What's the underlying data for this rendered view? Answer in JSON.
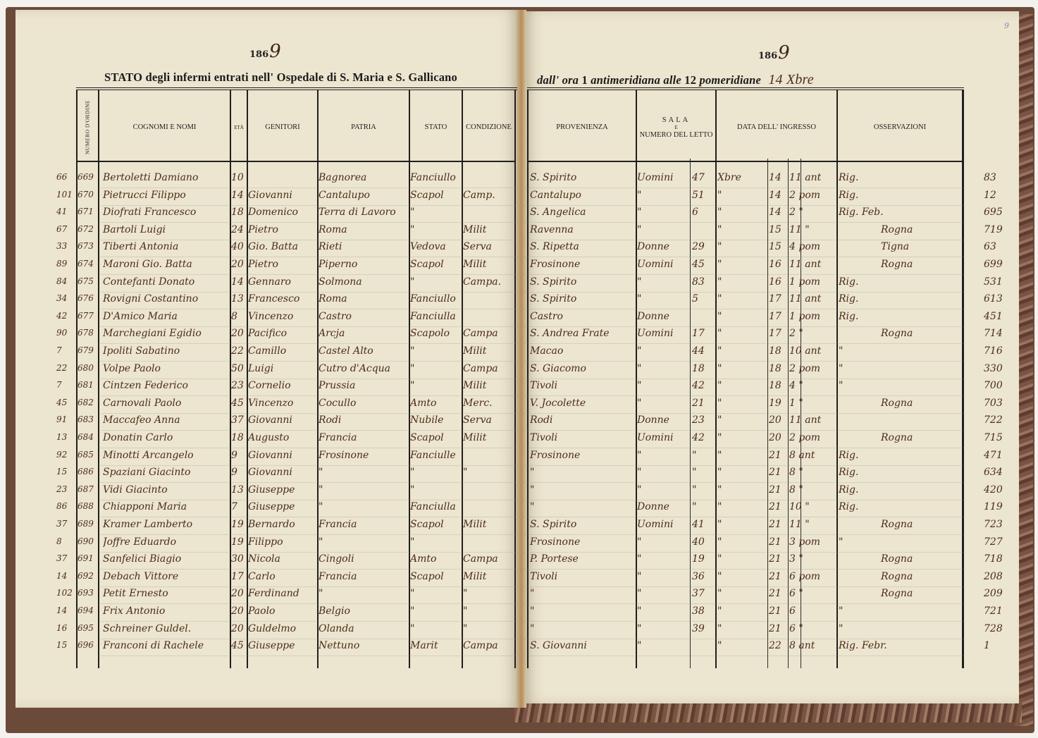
{
  "left_page": {
    "year_printed": "186",
    "year_written": "9",
    "title": "STATO degli infermi entrati nell' Ospedale di S. Maria e S. Gallicano",
    "headers": {
      "numero": "NUMERO D'ORDINE",
      "nomi": "COGNOMI E NOMI",
      "eta": "ETÀ",
      "genitori": "GENITORI",
      "patria": "PATRIA",
      "stato": "STATO",
      "condizione": "CONDIZIONE"
    }
  },
  "right_page": {
    "year_printed": "186",
    "year_written": "9",
    "title_italic_1": "dall' ora",
    "title_hour_1": "1",
    "title_italic_2": "antimeridiana alle",
    "title_hour_2": "12",
    "title_italic_3": "pomeridiane",
    "date_written": "14 Xbre",
    "page_number": "9",
    "headers": {
      "provenienza": "PROVENIENZA",
      "sala_1": "SALA",
      "sala_2": "E",
      "sala_3": "NUMERO DEL LETTO",
      "data": "DATA DELL' INGRESSO",
      "osservazioni": "OSSERVAZIONI"
    }
  },
  "rows": [
    {
      "margin": "66",
      "num": "669",
      "name": "Bertoletti Damiano",
      "eta": "10",
      "genitori": "",
      "patria": "Bagnorea",
      "stato": "Fanciullo",
      "condizione": "",
      "provenienza": "S. Spirito",
      "sala": "Uomini",
      "letto": "47",
      "mese": "Xbre",
      "giorno": "14",
      "ora": "11 ant",
      "oss": "Rig.",
      "ref": "83"
    },
    {
      "margin": "101",
      "num": "670",
      "name": "Pietrucci Filippo",
      "eta": "14",
      "genitori": "Giovanni",
      "patria": "Cantalupo",
      "stato": "Scapol",
      "condizione": "Camp.",
      "provenienza": "Cantalupo",
      "sala": "\"",
      "letto": "51",
      "mese": "\"",
      "giorno": "14",
      "ora": "2 pom",
      "oss": "Rig.",
      "ref": "12"
    },
    {
      "margin": "41",
      "num": "671",
      "name": "Diofrati Francesco",
      "eta": "18",
      "genitori": "Domenico",
      "patria": "Terra di Lavoro",
      "stato": "\"",
      "condizione": "",
      "provenienza": "S. Angelica",
      "sala": "\"",
      "letto": "6",
      "mese": "\"",
      "giorno": "14",
      "ora": "2 \"",
      "oss": "Rig. Feb.",
      "ref": "695"
    },
    {
      "margin": "67",
      "num": "672",
      "name": "Bartoli Luigi",
      "eta": "24",
      "genitori": "Pietro",
      "patria": "Roma",
      "stato": "\"",
      "condizione": "Milit",
      "provenienza": "Ravenna",
      "sala": "\"",
      "letto": "",
      "mese": "\"",
      "giorno": "15",
      "ora": "11 \"",
      "oss": "Rogna",
      "ref": "719"
    },
    {
      "margin": "33",
      "num": "673",
      "name": "Tiberti Antonia",
      "eta": "40",
      "genitori": "Gio. Batta",
      "patria": "Rieti",
      "stato": "Vedova",
      "condizione": "Serva",
      "provenienza": "S. Ripetta",
      "sala": "Donne",
      "letto": "29",
      "mese": "\"",
      "giorno": "15",
      "ora": "4 pom",
      "oss": "Tigna",
      "ref": "63"
    },
    {
      "margin": "89",
      "num": "674",
      "name": "Maroni Gio. Batta",
      "eta": "20",
      "genitori": "Pietro",
      "patria": "Piperno",
      "stato": "Scapol",
      "condizione": "Milit",
      "provenienza": "Frosinone",
      "sala": "Uomini",
      "letto": "45",
      "mese": "\"",
      "giorno": "16",
      "ora": "11 ant",
      "oss": "Rogna",
      "ref": "699"
    },
    {
      "margin": "84",
      "num": "675",
      "name": "Contefanti Donato",
      "eta": "14",
      "genitori": "Gennaro",
      "patria": "Solmona",
      "stato": "\"",
      "condizione": "Campa.",
      "provenienza": "S. Spirito",
      "sala": "\"",
      "letto": "83",
      "mese": "\"",
      "giorno": "16",
      "ora": "1 pom",
      "oss": "Rig.",
      "ref": "531"
    },
    {
      "margin": "34",
      "num": "676",
      "name": "Rovigni Costantino",
      "eta": "13",
      "genitori": "Francesco",
      "patria": "Roma",
      "stato": "Fanciullo",
      "condizione": "",
      "provenienza": "S. Spirito",
      "sala": "\"",
      "letto": "5",
      "mese": "\"",
      "giorno": "17",
      "ora": "11 ant",
      "oss": "Rig.",
      "ref": "613"
    },
    {
      "margin": "42",
      "num": "677",
      "name": "D'Amico Maria",
      "eta": "8",
      "genitori": "Vincenzo",
      "patria": "Castro",
      "stato": "Fanciulla",
      "condizione": "",
      "provenienza": "Castro",
      "sala": "Donne",
      "letto": "",
      "mese": "\"",
      "giorno": "17",
      "ora": "1 pom",
      "oss": "Rig.",
      "ref": "451"
    },
    {
      "margin": "90",
      "num": "678",
      "name": "Marchegiani Egidio",
      "eta": "20",
      "genitori": "Pacifico",
      "patria": "Arcja",
      "stato": "Scapolo",
      "condizione": "Campa",
      "provenienza": "S. Andrea Frate",
      "sala": "Uomini",
      "letto": "17",
      "mese": "\"",
      "giorno": "17",
      "ora": "2 \"",
      "oss": "Rogna",
      "ref": "714"
    },
    {
      "margin": "7",
      "num": "679",
      "name": "Ipoliti Sabatino",
      "eta": "22",
      "genitori": "Camillo",
      "patria": "Castel Alto",
      "stato": "\"",
      "condizione": "Milit",
      "provenienza": "Macao",
      "sala": "\"",
      "letto": "44",
      "mese": "\"",
      "giorno": "18",
      "ora": "10 ant",
      "oss": "\"",
      "ref": "716"
    },
    {
      "margin": "22",
      "num": "680",
      "name": "Volpe Paolo",
      "eta": "50",
      "genitori": "Luigi",
      "patria": "Cutro d'Acqua",
      "stato": "\"",
      "condizione": "Campa",
      "provenienza": "S. Giacomo",
      "sala": "\"",
      "letto": "18",
      "mese": "\"",
      "giorno": "18",
      "ora": "2 pom",
      "oss": "\"",
      "ref": "330"
    },
    {
      "margin": "7",
      "num": "681",
      "name": "Cintzen Federico",
      "eta": "23",
      "genitori": "Cornelio",
      "patria": "Prussia",
      "stato": "\"",
      "condizione": "Milit",
      "provenienza": "Tivoli",
      "sala": "\"",
      "letto": "42",
      "mese": "\"",
      "giorno": "18",
      "ora": "4 \"",
      "oss": "\"",
      "ref": "700"
    },
    {
      "margin": "45",
      "num": "682",
      "name": "Carnovali Paolo",
      "eta": "45",
      "genitori": "Vincenzo",
      "patria": "Cocullo",
      "stato": "Amto",
      "condizione": "Merc.",
      "provenienza": "V. Jocolette",
      "sala": "\"",
      "letto": "21",
      "mese": "\"",
      "giorno": "19",
      "ora": "1 \"",
      "oss": "Rogna",
      "ref": "703"
    },
    {
      "margin": "91",
      "num": "683",
      "name": "Maccafeo Anna",
      "eta": "37",
      "genitori": "Giovanni",
      "patria": "Rodi",
      "stato": "Nubile",
      "condizione": "Serva",
      "provenienza": "Rodi",
      "sala": "Donne",
      "letto": "23",
      "mese": "\"",
      "giorno": "20",
      "ora": "11 ant",
      "oss": "",
      "ref": "722"
    },
    {
      "margin": "13",
      "num": "684",
      "name": "Donatin Carlo",
      "eta": "18",
      "genitori": "Augusto",
      "patria": "Francia",
      "stato": "Scapol",
      "condizione": "Milit",
      "provenienza": "Tivoli",
      "sala": "Uomini",
      "letto": "42",
      "mese": "\"",
      "giorno": "20",
      "ora": "2 pom",
      "oss": "Rogna",
      "ref": "715"
    },
    {
      "margin": "92",
      "num": "685",
      "name": "Minotti Arcangelo",
      "eta": "9",
      "genitori": "Giovanni",
      "patria": "Frosinone",
      "stato": "Fanciulle",
      "condizione": "",
      "provenienza": "Frosinone",
      "sala": "\"",
      "letto": "\"",
      "mese": "\"",
      "giorno": "21",
      "ora": "8 ant",
      "oss": "Rig.",
      "ref": "471"
    },
    {
      "margin": "15",
      "num": "686",
      "name": "Spaziani Giacinto",
      "eta": "9",
      "genitori": "Giovanni",
      "patria": "\"",
      "stato": "\"",
      "condizione": "\"",
      "provenienza": "\"",
      "sala": "\"",
      "letto": "\"",
      "mese": "\"",
      "giorno": "21",
      "ora": "8 \"",
      "oss": "Rig.",
      "ref": "634"
    },
    {
      "margin": "23",
      "num": "687",
      "name": "Vidi Giacinto",
      "eta": "13",
      "genitori": "Giuseppe",
      "patria": "\"",
      "stato": "\"",
      "condizione": "",
      "provenienza": "\"",
      "sala": "\"",
      "letto": "\"",
      "mese": "\"",
      "giorno": "21",
      "ora": "8 \"",
      "oss": "Rig.",
      "ref": "420"
    },
    {
      "margin": "86",
      "num": "688",
      "name": "Chiapponi Maria",
      "eta": "7",
      "genitori": "Giuseppe",
      "patria": "\"",
      "stato": "Fanciulla",
      "condizione": "",
      "provenienza": "\"",
      "sala": "Donne",
      "letto": "\"",
      "mese": "\"",
      "giorno": "21",
      "ora": "10 \"",
      "oss": "Rig.",
      "ref": "119"
    },
    {
      "margin": "37",
      "num": "689",
      "name": "Kramer Lamberto",
      "eta": "19",
      "genitori": "Bernardo",
      "patria": "Francia",
      "stato": "Scapol",
      "condizione": "Milit",
      "provenienza": "S. Spirito",
      "sala": "Uomini",
      "letto": "41",
      "mese": "\"",
      "giorno": "21",
      "ora": "11 \"",
      "oss": "Rogna",
      "ref": "723"
    },
    {
      "margin": "8",
      "num": "690",
      "name": "Joffre Eduardo",
      "eta": "19",
      "genitori": "Filippo",
      "patria": "\"",
      "stato": "\"",
      "condizione": "",
      "provenienza": "Frosinone",
      "sala": "\"",
      "letto": "40",
      "mese": "\"",
      "giorno": "21",
      "ora": "3 pom",
      "oss": "\"",
      "ref": "727"
    },
    {
      "margin": "37",
      "num": "691",
      "name": "Sanfelici Biagio",
      "eta": "30",
      "genitori": "Nicola",
      "patria": "Cingoli",
      "stato": "Amto",
      "condizione": "Campa",
      "provenienza": "P. Portese",
      "sala": "\"",
      "letto": "19",
      "mese": "\"",
      "giorno": "21",
      "ora": "3 \"",
      "oss": "Rogna",
      "ref": "718"
    },
    {
      "margin": "14",
      "num": "692",
      "name": "Debach Vittore",
      "eta": "17",
      "genitori": "Carlo",
      "patria": "Francia",
      "stato": "Scapol",
      "condizione": "Milit",
      "provenienza": "Tivoli",
      "sala": "\"",
      "letto": "36",
      "mese": "\"",
      "giorno": "21",
      "ora": "6 pom",
      "oss": "Rogna",
      "ref": "208"
    },
    {
      "margin": "102",
      "num": "693",
      "name": "Petit Ernesto",
      "eta": "20",
      "genitori": "Ferdinand",
      "patria": "\"",
      "stato": "\"",
      "condizione": "\"",
      "provenienza": "\"",
      "sala": "\"",
      "letto": "37",
      "mese": "\"",
      "giorno": "21",
      "ora": "6 \"",
      "oss": "Rogna",
      "ref": "209"
    },
    {
      "margin": "14",
      "num": "694",
      "name": "Frix Antonio",
      "eta": "20",
      "genitori": "Paolo",
      "patria": "Belgio",
      "stato": "\"",
      "condizione": "\"",
      "provenienza": "\"",
      "sala": "\"",
      "letto": "38",
      "mese": "\"",
      "giorno": "21",
      "ora": "6",
      "oss": "\"",
      "ref": "721"
    },
    {
      "margin": "16",
      "num": "695",
      "name": "Schreiner Guldel.",
      "eta": "20",
      "genitori": "Guldelmo",
      "patria": "Olanda",
      "stato": "\"",
      "condizione": "\"",
      "provenienza": "\"",
      "sala": "\"",
      "letto": "39",
      "mese": "\"",
      "giorno": "21",
      "ora": "6 \"",
      "oss": "\"",
      "ref": "728"
    },
    {
      "margin": "15",
      "num": "696",
      "name": "Franconi di Rachele",
      "eta": "45",
      "genitori": "Giuseppe",
      "patria": "Nettuno",
      "stato": "Marit",
      "condizione": "Campa",
      "provenienza": "S. Giovanni",
      "sala": "\"",
      "letto": "",
      "mese": "\"",
      "giorno": "22",
      "ora": "8 ant",
      "oss": "Rig. Febr.",
      "ref": "1"
    }
  ]
}
